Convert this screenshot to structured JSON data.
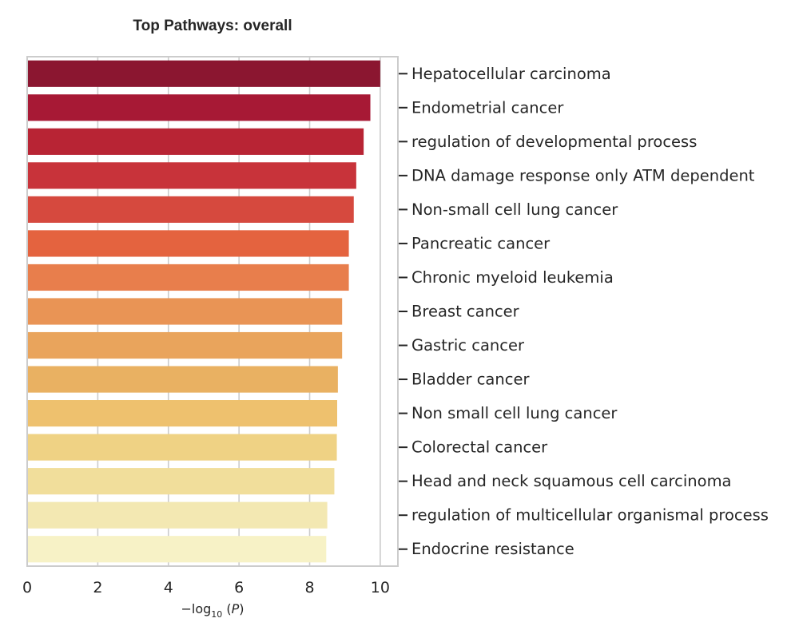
{
  "chart_data": {
    "type": "bar",
    "orientation": "horizontal",
    "title": "Top Pathways: overall",
    "xlabel": "−log₁₀(P)",
    "ylabel": "",
    "xlim": [
      0,
      10.5
    ],
    "xticks": [
      0,
      2,
      4,
      6,
      8,
      10
    ],
    "grid": "vertical",
    "legend": "none",
    "category_axis_side": "right",
    "categories": [
      "Hepatocellular carcinoma",
      "Endometrial cancer",
      "regulation of developmental process",
      "DNA damage response only ATM dependent",
      "Non-small cell lung cancer",
      "Pancreatic cancer",
      "Chronic myeloid leukemia",
      "Breast cancer",
      "Gastric cancer",
      "Bladder cancer",
      "Non small cell lung cancer",
      "Colorectal cancer",
      "Head and neck squamous cell carcinoma",
      "regulation of multicellular organismal process",
      "Endocrine resistance"
    ],
    "values": [
      10.0,
      9.72,
      9.53,
      9.32,
      9.25,
      9.11,
      9.11,
      8.92,
      8.92,
      8.8,
      8.78,
      8.77,
      8.7,
      8.5,
      8.47
    ],
    "colors": [
      "#8b1630",
      "#a71935",
      "#b82434",
      "#c8333a",
      "#d6493e",
      "#e4633f",
      "#e87e4c",
      "#e99455",
      "#e9a45c",
      "#e9b162",
      "#eec16e",
      "#efd284",
      "#f1de9b",
      "#f3e8b2",
      "#f7f2c6"
    ]
  }
}
